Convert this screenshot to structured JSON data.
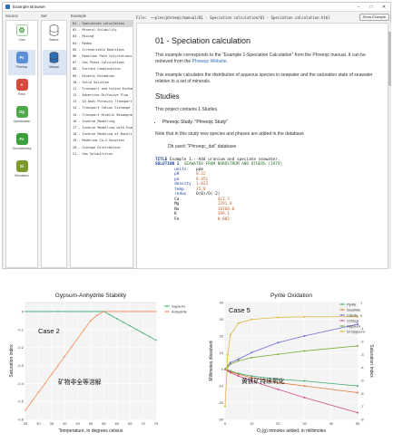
{
  "window": {
    "title": "Example Browser",
    "controls": [
      "–",
      "□",
      "✕"
    ]
  },
  "panes": {
    "source": "Source",
    "set": "Set",
    "example": "Example",
    "file_label": "File:"
  },
  "sources": [
    {
      "label": "Core",
      "color": "#ffffff",
      "glyph": "⚙",
      "glyph_color": "#3a9f3a"
    },
    {
      "label": "Phreeqc",
      "color": "#5c8fd6",
      "glyph": "Pc"
    },
    {
      "label": "Rxns",
      "color": "#d84a3f",
      "glyph": "✦"
    },
    {
      "label": "Optimization",
      "color": "#4fa84a",
      "glyph": "Op"
    },
    {
      "label": "Geochemistry",
      "color": "#3a9f3a",
      "glyph": "Fx"
    },
    {
      "label": "Simulation",
      "color": "#7a9a2e",
      "glyph": "Si"
    }
  ],
  "sets": [
    {
      "label": "Basics"
    },
    {
      "label": "Manual"
    }
  ],
  "examples": [
    "01 - Speciation calculation",
    "02 - Mineral Solubility",
    "03 - Mixing",
    "04 - Redox",
    "05 - Irreversible Reactions",
    "06 - Reaction Path Calculations",
    "07 - Gas Phase Calculations",
    "08 - Surface Complexation",
    "09 - Kinetic Oxidation",
    "10 - Solid Solution",
    "11 - Transport and Cation Exchange",
    "12 - Advective Diffusive Flow",
    "13 - 1D Dual Porosity Transport",
    "14 - Transport Cation Exchange",
    "15 - Transport Kinetic Biodegradation",
    "16 - Inverse Modelling",
    "17 - Inverse Modelling with Evap",
    "18 - Inverse Modeling of Basalt",
    "19 - Modeling Cd-Z Sorption",
    "20 - Isotope Distribution",
    "21 - Gas Solubilities"
  ],
  "filebar": {
    "path": "~~ples/phreeqc/manual/01 - Speciation calculation/01 - Speciation calculation.html",
    "button": "Show Example"
  },
  "doc": {
    "title": "01 - Speciation calculation",
    "p1a": "This example corresponds to the \"Example 1-Speciation Calculation\" from the Phreeqc manual. It can be retrieved from the ",
    "p1_link": "Phreeqc Website",
    "p2": "This example calculates the distribution of aqueous species in seawater and the saturation state of seawater relative to a set of minerals.",
    "h2": "Studies",
    "p3": "This project contains 1 Studies.",
    "li1": "Phreeqc Study: \"Phreeqc Study\"",
    "p4": "Note that in this study new species and phases are added in the database",
    "p5": "Db used: \"Phreeqc_dat\" database"
  },
  "code": [
    [
      [
        "kw",
        "TITLE"
      ],
      [
        "t",
        " Example 1.--Add uranium and speciate seawater."
      ]
    ],
    [
      [
        "kw",
        "SOLUTION 1"
      ],
      [
        "cmt",
        "  SEAWATER FROM NORDSTROM AND OTHERS (1979)"
      ]
    ],
    [
      [
        "t",
        "        "
      ],
      [
        "kw2",
        "units"
      ],
      [
        "t",
        "    ppm"
      ]
    ],
    [
      [
        "t",
        "        "
      ],
      [
        "kw2",
        "pH"
      ],
      [
        "t",
        "       "
      ],
      [
        "num",
        "8.22"
      ]
    ],
    [
      [
        "t",
        "        "
      ],
      [
        "kw2",
        "pe"
      ],
      [
        "t",
        "       "
      ],
      [
        "num",
        "8.451"
      ]
    ],
    [
      [
        "t",
        "        "
      ],
      [
        "kw2",
        "density"
      ],
      [
        "t",
        "  "
      ],
      [
        "num",
        "1.023"
      ]
    ],
    [
      [
        "t",
        "        "
      ],
      [
        "kw2",
        "temp"
      ],
      [
        "t",
        "     "
      ],
      [
        "num",
        "25.0"
      ]
    ],
    [
      [
        "t",
        "        "
      ],
      [
        "kw2",
        "redox"
      ],
      [
        "t",
        "    O(0)/O(-2)"
      ]
    ],
    [
      [
        "t",
        "        Ca                "
      ],
      [
        "num",
        "412.3"
      ]
    ],
    [
      [
        "t",
        "        Mg                "
      ],
      [
        "num",
        "1291.8"
      ]
    ],
    [
      [
        "t",
        "        Na                "
      ],
      [
        "num",
        "10768.0"
      ]
    ],
    [
      [
        "t",
        "        K                 "
      ],
      [
        "num",
        "399.1"
      ]
    ],
    [
      [
        "t",
        "        Fe                "
      ],
      [
        "num",
        "0.002"
      ]
    ]
  ],
  "chart_data": [
    {
      "type": "line",
      "title": "Gypsum-Anhydrite Stability",
      "xlabel": "Temperature, in degrees celsius",
      "ylabel": "Saturation index",
      "xlim": [
        25,
        75
      ],
      "ylim": [
        -0.6,
        0.05
      ],
      "xticks": [
        25,
        30,
        35,
        40,
        45,
        50,
        55,
        60,
        65,
        70,
        75
      ],
      "yticks": [
        0,
        -0.1,
        -0.2,
        -0.3,
        -0.4,
        -0.5,
        -0.6
      ],
      "ytick_labels": [
        "0",
        "-0.1",
        "-0.2",
        "-0.3",
        "-0.4",
        "-0.5",
        "-0.6"
      ],
      "legend_position": "top-right",
      "series": [
        {
          "name": "Gypsum",
          "color": "#3aaa6e",
          "x": [
            25,
            27.5,
            30,
            32.5,
            35,
            37.5,
            40,
            42.5,
            45,
            47.5,
            50,
            52.5,
            55,
            57.5,
            60,
            62.5,
            65,
            67.5,
            70,
            72.5,
            75
          ],
          "y": [
            0,
            0,
            0,
            0,
            0,
            0,
            0,
            0,
            0,
            0,
            0,
            0,
            0,
            -0.02,
            -0.04,
            -0.06,
            -0.08,
            -0.1,
            -0.12,
            -0.14,
            -0.16
          ]
        },
        {
          "name": "Anhydrite",
          "color": "#f28a54",
          "x": [
            25,
            27.5,
            30,
            32.5,
            35,
            37.5,
            40,
            42.5,
            45,
            47.5,
            50,
            52.5,
            55,
            57.5,
            60,
            62.5,
            65,
            67.5,
            70,
            72.5,
            75
          ],
          "y": [
            -0.55,
            -0.5,
            -0.45,
            -0.4,
            -0.35,
            -0.3,
            -0.25,
            -0.2,
            -0.15,
            -0.1,
            -0.05,
            -0.02,
            0,
            0,
            0,
            0,
            0,
            0,
            0,
            0,
            0
          ]
        }
      ],
      "annotations": [
        "Case 2",
        "矿物非全等溶解"
      ]
    },
    {
      "type": "line",
      "title": "Pyrite Oxidation",
      "xlabel": "O₂(g) mmoles added, in millimoles",
      "ylabel": "Millimoles dissolved",
      "y2label": "Saturation Index",
      "xlim": [
        0,
        50
      ],
      "ylim": [
        -30,
        40
      ],
      "y2lim": [
        -8,
        1
      ],
      "xticks": [
        0,
        10,
        20,
        30,
        40,
        50
      ],
      "yticks": [
        40,
        30,
        20,
        10,
        0,
        -10,
        -20,
        -30
      ],
      "y2ticks": [
        1,
        0,
        -1,
        -2,
        -3,
        -4,
        -5,
        -6,
        -7,
        -8
      ],
      "legend_position": "top-right",
      "series": [
        {
          "name": "Pyrite",
          "color": "#3aaa6e",
          "x": [
            0,
            1,
            2,
            5,
            10,
            20,
            30,
            50
          ],
          "y": [
            0,
            -0.5,
            -1,
            -2.5,
            -4,
            -6,
            -7,
            -10
          ]
        },
        {
          "name": "Goethite",
          "color": "#e0783a",
          "x": [
            0,
            1,
            2,
            5,
            10,
            20,
            30,
            50
          ],
          "y": [
            0,
            -0.8,
            -1.5,
            -3,
            -5,
            -8,
            -10,
            -14
          ]
        },
        {
          "name": "Calcite",
          "color": "#6a6ad4",
          "x": [
            0,
            1,
            2,
            5,
            10,
            20,
            30,
            50
          ],
          "y": [
            0,
            2,
            4,
            6,
            10,
            16,
            20,
            27
          ]
        },
        {
          "name": "CO2(g)",
          "color": "#d24b8a",
          "x": [
            0,
            1,
            2,
            5,
            10,
            20,
            30,
            50
          ],
          "y": [
            0,
            -1,
            -2,
            -4,
            -7,
            -12,
            -17,
            -26
          ]
        },
        {
          "name": "Gypsum",
          "color": "#7cae3a",
          "x": [
            0,
            1,
            2,
            5,
            10,
            20,
            30,
            50
          ],
          "y": [
            0,
            1.5,
            3,
            5,
            7,
            9,
            11,
            14
          ]
        },
        {
          "name": "SI Gypsum",
          "color": "#e0b43a",
          "axis": "y2",
          "x": [
            0,
            1,
            2,
            5,
            10,
            20,
            30,
            50
          ],
          "y": [
            -7,
            -3,
            -1.5,
            -0.6,
            -0.3,
            -0.15,
            -0.1,
            -0.1
          ]
        }
      ],
      "annotations": [
        "Case 5",
        "黄铁矿持续氧化"
      ]
    }
  ]
}
